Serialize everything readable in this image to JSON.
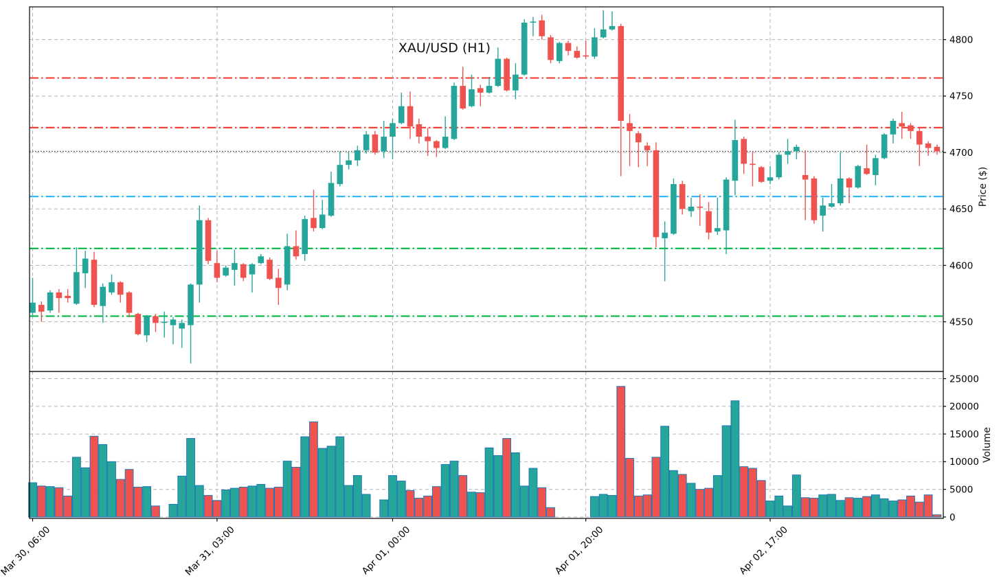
{
  "style": {
    "up_color": "#26a69a",
    "down_color": "#ef5350",
    "resistance_color": "#f44336",
    "pivot_color": "#29b6f6",
    "support_color": "#00b843",
    "last_price_color": "#4d4d4d",
    "grid_color": "#b4b4b4",
    "volume_bar_edge": "#1f77b4",
    "spine_color": "#000000",
    "text_color": "#000000"
  },
  "chart_data": {
    "type": "candlestick",
    "title": "XAU/USD (H1)",
    "symbol": "XAU/USD",
    "timeframe": "H1",
    "legend_position": "none",
    "grid": "dashed",
    "price_axis": {
      "label": "Price ($)",
      "side": "right",
      "ticks": [
        4550,
        4600,
        4650,
        4700,
        4750,
        4800
      ],
      "range": [
        4506,
        4829
      ]
    },
    "volume_axis": {
      "label": "Volume",
      "side": "right",
      "ticks": [
        0,
        5000,
        10000,
        15000,
        20000,
        25000
      ],
      "range": [
        0,
        26300
      ]
    },
    "time_axis": {
      "tick_labels": [
        "Mar 30, 06:00",
        "Mar 31, 03:00",
        "Apr 01, 00:00",
        "Apr 01, 20:00",
        "Apr 02, 17:00"
      ],
      "tick_candle_indices": [
        0,
        21,
        41,
        63,
        84
      ],
      "label_rotation_deg": 45
    },
    "levels": {
      "resistance": [
        4766,
        4722
      ],
      "pivot": 4661,
      "support": [
        4615,
        4555
      ],
      "last_price": 4701
    },
    "columns": [
      "open",
      "high",
      "low",
      "close",
      "volume"
    ],
    "candles_ohlcv": [
      [
        4558,
        4589,
        4555,
        4567,
        6200
      ],
      [
        4565,
        4568,
        4550,
        4559,
        5600
      ],
      [
        4560,
        4578,
        4558,
        4576,
        5500
      ],
      [
        4576,
        4579,
        4558,
        4571,
        5300
      ],
      [
        4573,
        4579,
        4567,
        4571,
        3800
      ],
      [
        4566,
        4616,
        4565,
        4594,
        10800
      ],
      [
        4593,
        4613,
        4580,
        4606,
        8900
      ],
      [
        4605,
        4612,
        4563,
        4565,
        14600
      ],
      [
        4564,
        4584,
        4549,
        4581,
        13100
      ],
      [
        4576,
        4592,
        4574,
        4585,
        10000
      ],
      [
        4585,
        4586,
        4567,
        4574,
        6800
      ],
      [
        4576,
        4577,
        4554,
        4558,
        8600
      ],
      [
        4557,
        4558,
        4538,
        4539,
        5400
      ],
      [
        4538,
        4556,
        4532,
        4555,
        5500
      ],
      [
        4555,
        4557,
        4541,
        4549,
        2000
      ],
      [
        4549,
        4559,
        4536,
        4550,
        0
      ],
      [
        4547,
        4554,
        4530,
        4552,
        2300
      ],
      [
        4544,
        4552,
        4527,
        4549,
        7400
      ],
      [
        4547,
        4584,
        4513,
        4583,
        14200
      ],
      [
        4583,
        4653,
        4567,
        4640,
        5700
      ],
      [
        4640,
        4642,
        4601,
        4604,
        3900
      ],
      [
        4602,
        4613,
        4585,
        4589,
        3000
      ],
      [
        4591,
        4600,
        4590,
        4598,
        4900
      ],
      [
        4596,
        4614,
        4582,
        4602,
        5200
      ],
      [
        4601,
        4602,
        4586,
        4589,
        5400
      ],
      [
        4592,
        4602,
        4576,
        4601,
        5600
      ],
      [
        4602,
        4610,
        4601,
        4608,
        5900
      ],
      [
        4605,
        4607,
        4587,
        4588,
        5200
      ],
      [
        4589,
        4597,
        4565,
        4580,
        5400
      ],
      [
        4583,
        4628,
        4578,
        4617,
        10100
      ],
      [
        4617,
        4631,
        4605,
        4608,
        9000
      ],
      [
        4610,
        4644,
        4604,
        4641,
        14500
      ],
      [
        4642,
        4667,
        4630,
        4633,
        17200
      ],
      [
        4633,
        4658,
        4632,
        4645,
        12400
      ],
      [
        4644,
        4683,
        4643,
        4673,
        12800
      ],
      [
        4672,
        4701,
        4670,
        4689,
        14500
      ],
      [
        4689,
        4701,
        4685,
        4693,
        5700
      ],
      [
        4693,
        4706,
        4688,
        4702,
        7500
      ],
      [
        4702,
        4719,
        4699,
        4716,
        4100
      ],
      [
        4716,
        4719,
        4698,
        4700,
        0
      ],
      [
        4701,
        4728,
        4695,
        4714,
        3100
      ],
      [
        4714,
        4730,
        4694,
        4726,
        7500
      ],
      [
        4726,
        4753,
        4725,
        4741,
        6500
      ],
      [
        4741,
        4754,
        4712,
        4723,
        4800
      ],
      [
        4725,
        4730,
        4708,
        4714,
        3400
      ],
      [
        4714,
        4722,
        4697,
        4710,
        3800
      ],
      [
        4710,
        4711,
        4696,
        4704,
        5500
      ],
      [
        4704,
        4732,
        4703,
        4714,
        9500
      ],
      [
        4712,
        4762,
        4711,
        4759,
        10100
      ],
      [
        4759,
        4776,
        4738,
        4739,
        7500
      ],
      [
        4741,
        4769,
        4740,
        4756,
        4500
      ],
      [
        4757,
        4760,
        4741,
        4753,
        4400
      ],
      [
        4753,
        4767,
        4752,
        4759,
        12500
      ],
      [
        4759,
        4793,
        4758,
        4783,
        11100
      ],
      [
        4783,
        4784,
        4754,
        4755,
        14200
      ],
      [
        4755,
        4779,
        4747,
        4769,
        11600
      ],
      [
        4769,
        4818,
        4768,
        4815,
        5600
      ],
      [
        4815,
        4820,
        4803,
        4816,
        8800
      ],
      [
        4817,
        4822,
        4800,
        4803,
        5300
      ],
      [
        4802,
        4804,
        4779,
        4782,
        1700
      ],
      [
        4781,
        4798,
        4779,
        4797,
        0
      ],
      [
        4797,
        4799,
        4786,
        4790,
        0
      ],
      [
        4790,
        4794,
        4783,
        4784,
        0
      ],
      [
        4786,
        4799,
        4783,
        4785,
        0
      ],
      [
        4785,
        4810,
        4783,
        4802,
        3700
      ],
      [
        4802,
        4826,
        4801,
        4809,
        4100
      ],
      [
        4809,
        4825,
        4808,
        4812,
        3900
      ],
      [
        4812,
        4814,
        4679,
        4728,
        23600
      ],
      [
        4726,
        4734,
        4688,
        4719,
        10600
      ],
      [
        4717,
        4719,
        4687,
        4709,
        3800
      ],
      [
        4706,
        4709,
        4688,
        4702,
        4000
      ],
      [
        4702,
        4709,
        4616,
        4625,
        10800
      ],
      [
        4624,
        4639,
        4586,
        4629,
        16400
      ],
      [
        4628,
        4677,
        4627,
        4672,
        8400
      ],
      [
        4672,
        4675,
        4645,
        4650,
        7700
      ],
      [
        4648,
        4660,
        4643,
        4652,
        6100
      ],
      [
        4652,
        4663,
        4635,
        4651,
        5000
      ],
      [
        4648,
        4656,
        4623,
        4629,
        5200
      ],
      [
        4630,
        4660,
        4627,
        4633,
        7500
      ],
      [
        4631,
        4678,
        4610,
        4676,
        16500
      ],
      [
        4675,
        4729,
        4662,
        4711,
        21000
      ],
      [
        4712,
        4714,
        4681,
        4690,
        9100
      ],
      [
        4690,
        4701,
        4670,
        4689,
        8800
      ],
      [
        4687,
        4688,
        4673,
        4674,
        6600
      ],
      [
        4675,
        4688,
        4672,
        4678,
        2900
      ],
      [
        4678,
        4700,
        4676,
        4698,
        3800
      ],
      [
        4698,
        4712,
        4690,
        4701,
        2000
      ],
      [
        4701,
        4707,
        4694,
        4705,
        7600
      ],
      [
        4680,
        4702,
        4640,
        4676,
        3500
      ],
      [
        4677,
        4679,
        4637,
        4640,
        3400
      ],
      [
        4644,
        4660,
        4630,
        4653,
        4000
      ],
      [
        4652,
        4672,
        4651,
        4655,
        4100
      ],
      [
        4655,
        4700,
        4653,
        4677,
        3000
      ],
      [
        4677,
        4678,
        4655,
        4669,
        3500
      ],
      [
        4669,
        4689,
        4668,
        4688,
        3400
      ],
      [
        4686,
        4707,
        4680,
        4681,
        3700
      ],
      [
        4680,
        4698,
        4671,
        4695,
        4000
      ],
      [
        4695,
        4717,
        4694,
        4716,
        3300
      ],
      [
        4716,
        4730,
        4708,
        4728,
        2900
      ],
      [
        4726,
        4736,
        4712,
        4723,
        3100
      ],
      [
        4724,
        4726,
        4712,
        4719,
        3800
      ],
      [
        4719,
        4722,
        4688,
        4707,
        2700
      ],
      [
        4708,
        4710,
        4697,
        4704,
        4000
      ],
      [
        4705,
        4707,
        4698,
        4701,
        400
      ]
    ]
  }
}
